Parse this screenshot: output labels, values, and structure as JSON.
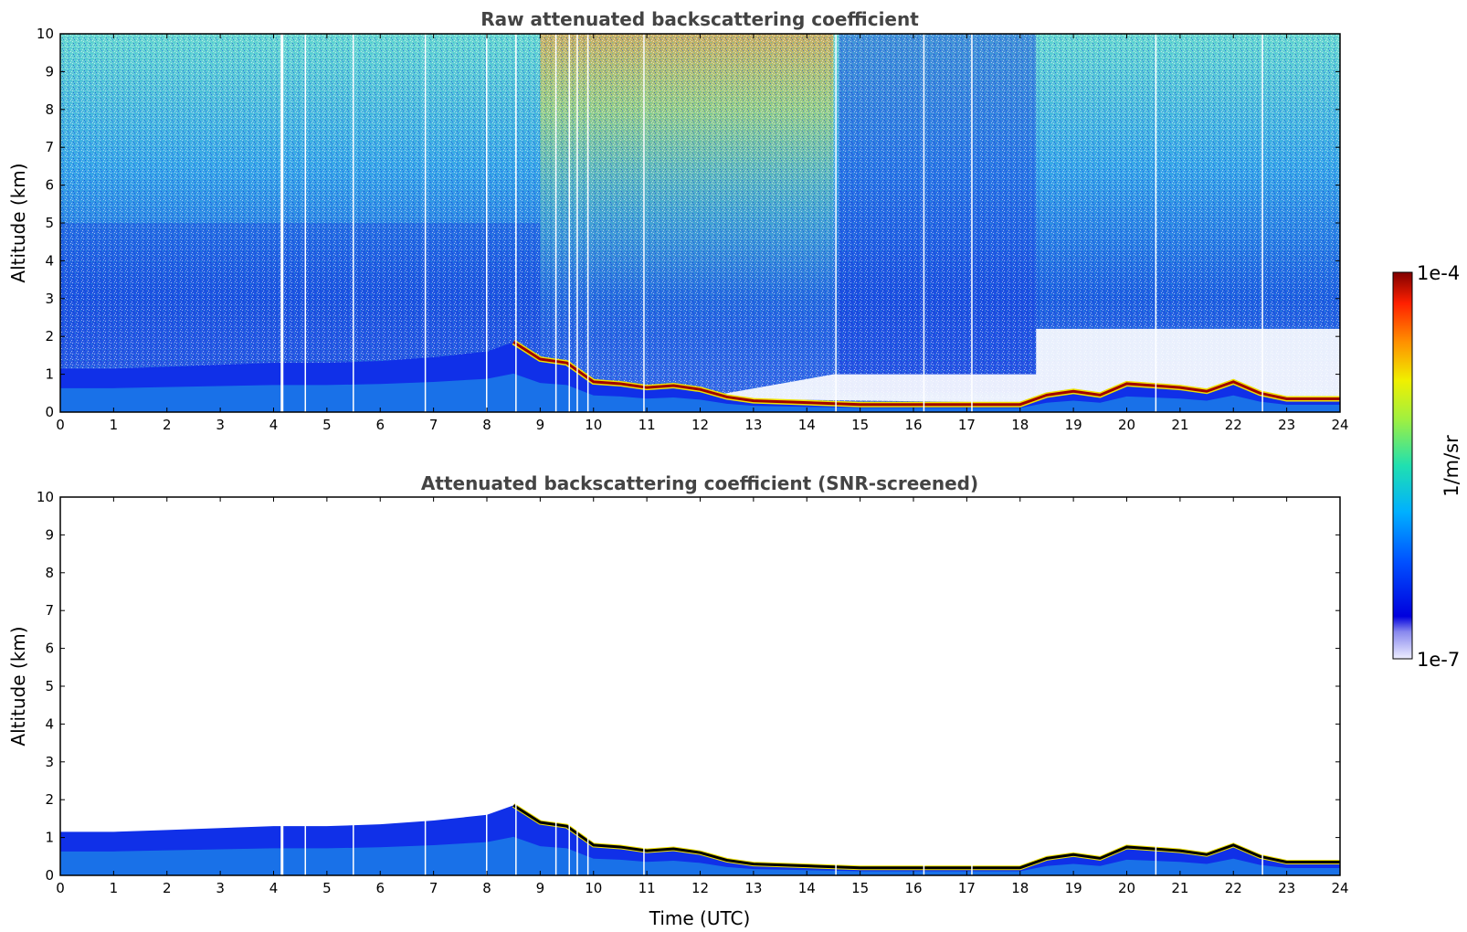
{
  "chart_data": [
    {
      "type": "heatmap",
      "title": "Raw attenuated backscattering coefficient",
      "xlabel": "",
      "ylabel": "Altitude (km)",
      "xlim": [
        0,
        24
      ],
      "ylim": [
        0,
        10
      ],
      "x_ticks": [
        0,
        1,
        2,
        3,
        4,
        5,
        6,
        7,
        8,
        9,
        10,
        11,
        12,
        13,
        14,
        15,
        16,
        17,
        18,
        19,
        20,
        21,
        22,
        23,
        24
      ],
      "y_ticks": [
        0,
        1,
        2,
        3,
        4,
        5,
        6,
        7,
        8,
        9,
        10
      ],
      "cloud_base_km": {
        "x": [
          0,
          1,
          2,
          3,
          4,
          5,
          6,
          7,
          8,
          8.5,
          9,
          9.5,
          10,
          10.5,
          11,
          11.5,
          12,
          12.5,
          13,
          14,
          15,
          16,
          17,
          18,
          18.5,
          19,
          19.5,
          20,
          20.5,
          21,
          21.5,
          22,
          22.5,
          23,
          24
        ],
        "y": [
          1.15,
          1.15,
          1.2,
          1.25,
          1.3,
          1.3,
          1.35,
          1.45,
          1.6,
          1.85,
          1.4,
          1.3,
          0.8,
          0.75,
          0.65,
          0.7,
          0.6,
          0.4,
          0.3,
          0.25,
          0.2,
          0.2,
          0.2,
          0.2,
          0.45,
          0.55,
          0.45,
          0.75,
          0.7,
          0.65,
          0.55,
          0.8,
          0.5,
          0.35,
          0.35
        ]
      },
      "gaps_utc": [
        4.15,
        4.6,
        5.5,
        6.85,
        8.0,
        8.55,
        9.3,
        9.55,
        9.7,
        9.9,
        10.95,
        14.55,
        16.2,
        17.1,
        20.55,
        22.55
      ]
    },
    {
      "type": "heatmap",
      "title": "Attenuated backscattering coefficient (SNR-screened)",
      "xlabel": "Time (UTC)",
      "ylabel": "Altitude (km)",
      "xlim": [
        0,
        24
      ],
      "ylim": [
        0,
        10
      ],
      "x_ticks": [
        0,
        1,
        2,
        3,
        4,
        5,
        6,
        7,
        8,
        9,
        10,
        11,
        12,
        13,
        14,
        15,
        16,
        17,
        18,
        19,
        20,
        21,
        22,
        23,
        24
      ],
      "y_ticks": [
        0,
        1,
        2,
        3,
        4,
        5,
        6,
        7,
        8,
        9,
        10
      ]
    }
  ],
  "colorbar": {
    "min_label": "1e-7",
    "max_label": "1e-4",
    "unit": "1/m/sr",
    "scale": "log",
    "colormap": "jet"
  }
}
